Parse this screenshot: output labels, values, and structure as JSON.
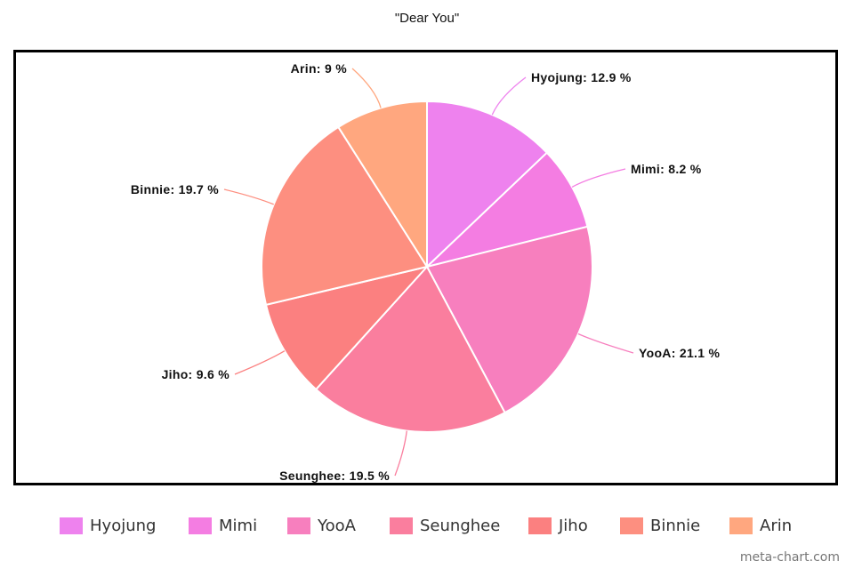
{
  "chart_data": {
    "type": "pie",
    "title": "\"Dear You\"",
    "slices": [
      {
        "name": "Hyojung",
        "value": 12.9,
        "label": "Hyojung: 12.9 %",
        "color": "#ee82ee"
      },
      {
        "name": "Mimi",
        "value": 8.2,
        "label": "Mimi: 8.2 %",
        "color": "#f47de2"
      },
      {
        "name": "YooA",
        "value": 21.1,
        "label": "YooA: 21.1 %",
        "color": "#f77fbe"
      },
      {
        "name": "Seunghee",
        "value": 19.5,
        "label": "Seunghee: 19.5 %",
        "color": "#fa7e9e"
      },
      {
        "name": "Jiho",
        "value": 9.6,
        "label": "Jiho: 9.6 %",
        "color": "#fb8080"
      },
      {
        "name": "Binnie",
        "value": 19.7,
        "label": "Binnie: 19.7 %",
        "color": "#fd8f80"
      },
      {
        "name": "Arin",
        "value": 9,
        "label": "Arin: 9 %",
        "color": "#ffa77f"
      }
    ],
    "legend_position": "bottom"
  },
  "watermark": "meta-chart.com"
}
